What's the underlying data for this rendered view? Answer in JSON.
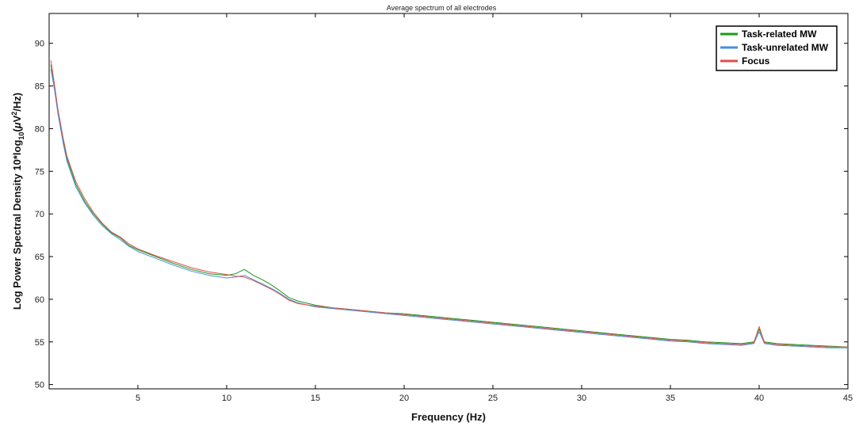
{
  "chart_data": {
    "type": "line",
    "title": "Average spectrum of all electrodes",
    "xlabel": "Frequency (Hz)",
    "ylabel_parts": {
      "prefix": "Log Power Spectral Density 10*log",
      "sub": "10",
      "mid": "(",
      "mu": "μ",
      "v": "V",
      "sup": "2",
      "suffix": "/Hz)"
    },
    "xlim": [
      0,
      45
    ],
    "ylim": [
      49.5,
      93.5
    ],
    "x_ticks": [
      5,
      10,
      15,
      20,
      25,
      30,
      35,
      40,
      45
    ],
    "y_ticks": [
      50,
      55,
      60,
      65,
      70,
      75,
      80,
      85,
      90
    ],
    "grid": false,
    "legend_position": "top-right",
    "series": [
      {
        "name": "Task-related MW",
        "color": "#1a9a1a",
        "x": [
          0.1,
          0.3,
          0.5,
          0.8,
          1.0,
          1.5,
          2.0,
          2.5,
          3.0,
          3.5,
          4.0,
          4.5,
          5.0,
          6.0,
          7.0,
          8.0,
          9.0,
          10.0,
          10.5,
          11.0,
          11.5,
          12.0,
          12.5,
          13.0,
          13.5,
          14.0,
          15.0,
          16.0,
          17.0,
          18.0,
          19.0,
          20.0,
          21.0,
          22.0,
          23.0,
          24.0,
          25.0,
          26.0,
          27.0,
          28.0,
          29.0,
          30.0,
          31.0,
          32.0,
          33.0,
          34.0,
          35.0,
          36.0,
          37.0,
          38.0,
          39.0,
          39.7,
          40.0,
          40.3,
          41.0,
          42.0,
          43.0,
          44.0,
          45.0
        ],
        "y": [
          87.5,
          85.0,
          82.0,
          78.5,
          76.5,
          73.5,
          71.5,
          70.0,
          68.8,
          67.8,
          67.2,
          66.3,
          65.8,
          65.0,
          64.2,
          63.5,
          63.0,
          62.8,
          63.0,
          63.5,
          62.8,
          62.3,
          61.7,
          61.0,
          60.2,
          59.8,
          59.3,
          59.0,
          58.8,
          58.6,
          58.4,
          58.3,
          58.1,
          57.9,
          57.7,
          57.5,
          57.3,
          57.1,
          56.9,
          56.7,
          56.5,
          56.3,
          56.1,
          55.9,
          55.7,
          55.5,
          55.3,
          55.2,
          55.0,
          54.9,
          54.8,
          55.0,
          56.5,
          55.0,
          54.8,
          54.7,
          54.6,
          54.5,
          54.4
        ]
      },
      {
        "name": "Task-unrelated MW",
        "color": "#4a8de0",
        "x": [
          0.1,
          0.3,
          0.5,
          0.8,
          1.0,
          1.5,
          2.0,
          2.5,
          3.0,
          3.5,
          4.0,
          4.5,
          5.0,
          6.0,
          7.0,
          8.0,
          9.0,
          10.0,
          10.5,
          11.0,
          11.5,
          12.0,
          12.5,
          13.0,
          13.5,
          14.0,
          15.0,
          16.0,
          17.0,
          18.0,
          19.0,
          20.0,
          21.0,
          22.0,
          23.0,
          24.0,
          25.0,
          26.0,
          27.0,
          28.0,
          29.0,
          30.0,
          31.0,
          32.0,
          33.0,
          34.0,
          35.0,
          36.0,
          37.0,
          38.0,
          39.0,
          39.7,
          40.0,
          40.3,
          41.0,
          42.0,
          43.0,
          44.0,
          45.0
        ],
        "y": [
          87.0,
          84.6,
          81.7,
          78.2,
          76.2,
          73.2,
          71.3,
          69.8,
          68.6,
          67.7,
          67.0,
          66.2,
          65.6,
          64.8,
          64.0,
          63.3,
          62.8,
          62.5,
          62.6,
          62.8,
          62.3,
          61.8,
          61.3,
          60.7,
          60.0,
          59.6,
          59.1,
          58.9,
          58.7,
          58.5,
          58.3,
          58.1,
          57.9,
          57.7,
          57.5,
          57.3,
          57.1,
          56.9,
          56.7,
          56.5,
          56.3,
          56.1,
          55.9,
          55.7,
          55.5,
          55.3,
          55.1,
          55.0,
          54.8,
          54.7,
          54.6,
          54.8,
          56.2,
          54.8,
          54.6,
          54.5,
          54.4,
          54.3,
          54.3
        ]
      },
      {
        "name": "Focus",
        "color": "#e0504a",
        "x": [
          0.1,
          0.3,
          0.5,
          0.8,
          1.0,
          1.5,
          2.0,
          2.5,
          3.0,
          3.5,
          4.0,
          4.5,
          5.0,
          6.0,
          7.0,
          8.0,
          9.0,
          10.0,
          10.5,
          11.0,
          11.5,
          12.0,
          12.5,
          13.0,
          13.5,
          14.0,
          15.0,
          16.0,
          17.0,
          18.0,
          19.0,
          20.0,
          21.0,
          22.0,
          23.0,
          24.0,
          25.0,
          26.0,
          27.0,
          28.0,
          29.0,
          30.0,
          31.0,
          32.0,
          33.0,
          34.0,
          35.0,
          36.0,
          37.0,
          38.0,
          39.0,
          39.7,
          40.0,
          40.3,
          41.0,
          42.0,
          43.0,
          44.0,
          45.0
        ],
        "y": [
          88.0,
          85.2,
          82.2,
          78.8,
          76.8,
          73.8,
          71.8,
          70.2,
          68.9,
          67.9,
          67.3,
          66.5,
          65.9,
          65.1,
          64.4,
          63.7,
          63.2,
          62.9,
          62.7,
          62.6,
          62.2,
          61.7,
          61.2,
          60.6,
          59.9,
          59.5,
          59.2,
          59.0,
          58.8,
          58.6,
          58.4,
          58.2,
          58.0,
          57.8,
          57.6,
          57.4,
          57.2,
          57.0,
          56.8,
          56.6,
          56.4,
          56.2,
          56.0,
          55.8,
          55.6,
          55.4,
          55.2,
          55.1,
          54.9,
          54.8,
          54.7,
          54.9,
          56.8,
          54.9,
          54.7,
          54.6,
          54.5,
          54.4,
          54.4
        ]
      }
    ]
  }
}
